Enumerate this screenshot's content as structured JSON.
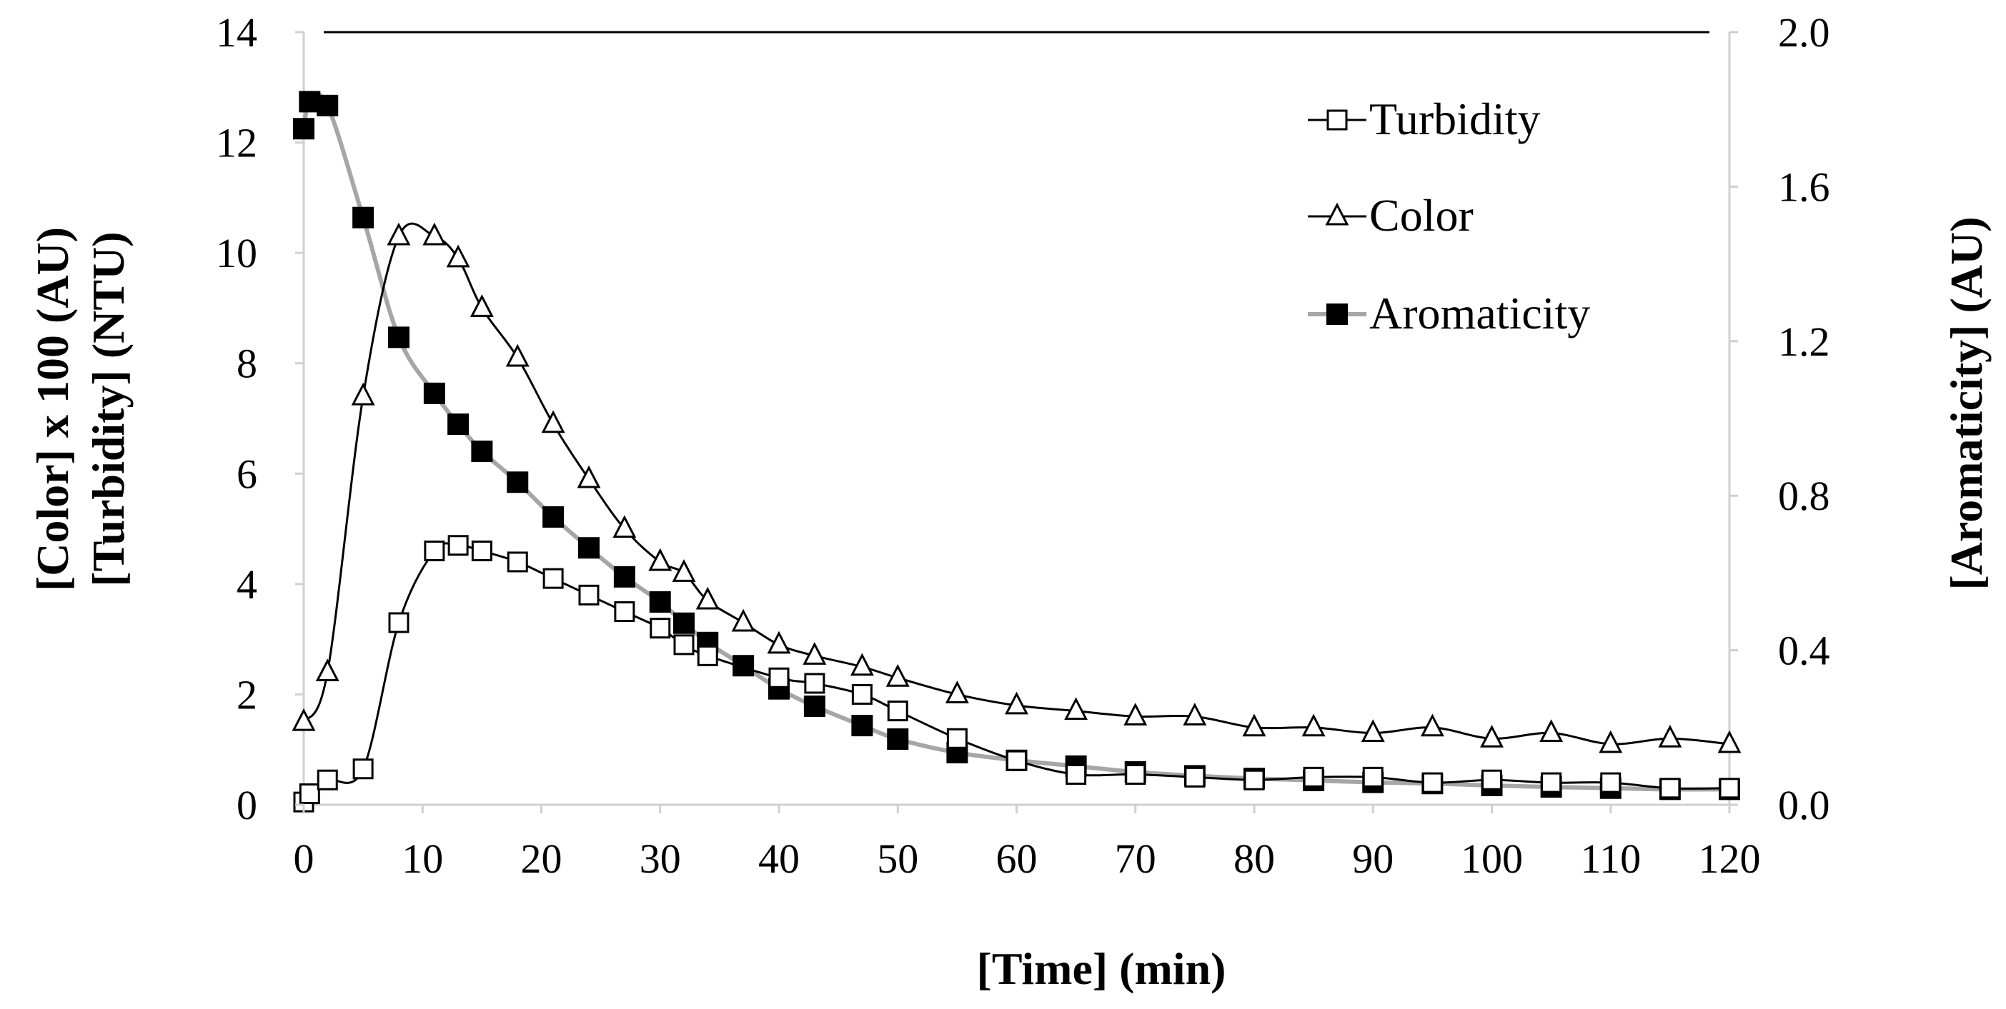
{
  "chart_data": {
    "type": "line",
    "title": "",
    "xlabel": "[Time] (min)",
    "ylabel_left_lines": [
      "[Color] x 100 (AU)",
      "[Turbidity] (NTU)"
    ],
    "ylabel_right": "[Aromaticity] (AU)",
    "xlim": [
      0,
      120
    ],
    "ylim_left": [
      0,
      14
    ],
    "ylim_right": [
      0,
      2.0
    ],
    "x_ticks": [
      "0",
      "10",
      "20",
      "30",
      "40",
      "50",
      "60",
      "70",
      "80",
      "90",
      "100",
      "110",
      "120"
    ],
    "y_left_ticks": [
      "0",
      "2",
      "4",
      "6",
      "8",
      "10",
      "12",
      "14"
    ],
    "y_right_ticks": [
      "0.0",
      "0.4",
      "0.8",
      "1.2",
      "1.6",
      "2.0"
    ],
    "legend_position": "top-right",
    "series": [
      {
        "name": "Turbidity",
        "axis": "left",
        "marker": "open-square",
        "line_color": "#000000",
        "x": [
          0,
          0.5,
          2,
          5,
          8,
          11,
          13,
          15,
          18,
          21,
          24,
          27,
          30,
          32,
          34,
          40,
          43,
          47,
          50,
          55,
          60,
          65,
          70,
          75,
          80,
          85,
          90,
          95,
          100,
          105,
          110,
          115,
          120
        ],
        "y": [
          0.05,
          0.2,
          0.45,
          0.65,
          3.3,
          4.6,
          4.7,
          4.6,
          4.4,
          4.1,
          3.8,
          3.5,
          3.2,
          2.9,
          2.7,
          2.3,
          2.2,
          2.0,
          1.7,
          1.2,
          0.8,
          0.55,
          0.55,
          0.5,
          0.45,
          0.5,
          0.5,
          0.4,
          0.45,
          0.4,
          0.4,
          0.3,
          0.3
        ]
      },
      {
        "name": "Color",
        "axis": "left",
        "marker": "open-triangle",
        "line_color": "#000000",
        "x": [
          0,
          2,
          5,
          8,
          11,
          13,
          15,
          18,
          21,
          24,
          27,
          30,
          32,
          34,
          37,
          40,
          43,
          47,
          50,
          55,
          60,
          65,
          70,
          75,
          80,
          85,
          90,
          95,
          100,
          105,
          110,
          115,
          120
        ],
        "y": [
          1.5,
          2.4,
          7.4,
          10.3,
          10.3,
          9.9,
          9.0,
          8.1,
          6.9,
          5.9,
          5.0,
          4.4,
          4.2,
          3.7,
          3.3,
          2.9,
          2.7,
          2.5,
          2.3,
          2.0,
          1.8,
          1.7,
          1.6,
          1.6,
          1.4,
          1.4,
          1.3,
          1.4,
          1.2,
          1.3,
          1.1,
          1.2,
          1.1
        ]
      },
      {
        "name": "Aromaticity",
        "axis": "right",
        "marker": "filled-square",
        "line_color": "#a6a6a6",
        "x": [
          0,
          0.5,
          2,
          5,
          8,
          11,
          13,
          15,
          18,
          21,
          24,
          27,
          30,
          32,
          34,
          37,
          40,
          43,
          47,
          50,
          55,
          60,
          65,
          70,
          75,
          80,
          85,
          90,
          95,
          100,
          105,
          110,
          115,
          120
        ],
        "y": [
          1.75,
          1.82,
          1.81,
          1.52,
          1.21,
          1.065,
          0.985,
          0.915,
          0.835,
          0.745,
          0.665,
          0.59,
          0.525,
          0.47,
          0.42,
          0.36,
          0.3,
          0.255,
          0.205,
          0.17,
          0.135,
          0.115,
          0.1,
          0.085,
          0.075,
          0.068,
          0.063,
          0.058,
          0.055,
          0.05,
          0.046,
          0.043,
          0.04,
          0.04
        ]
      }
    ]
  }
}
